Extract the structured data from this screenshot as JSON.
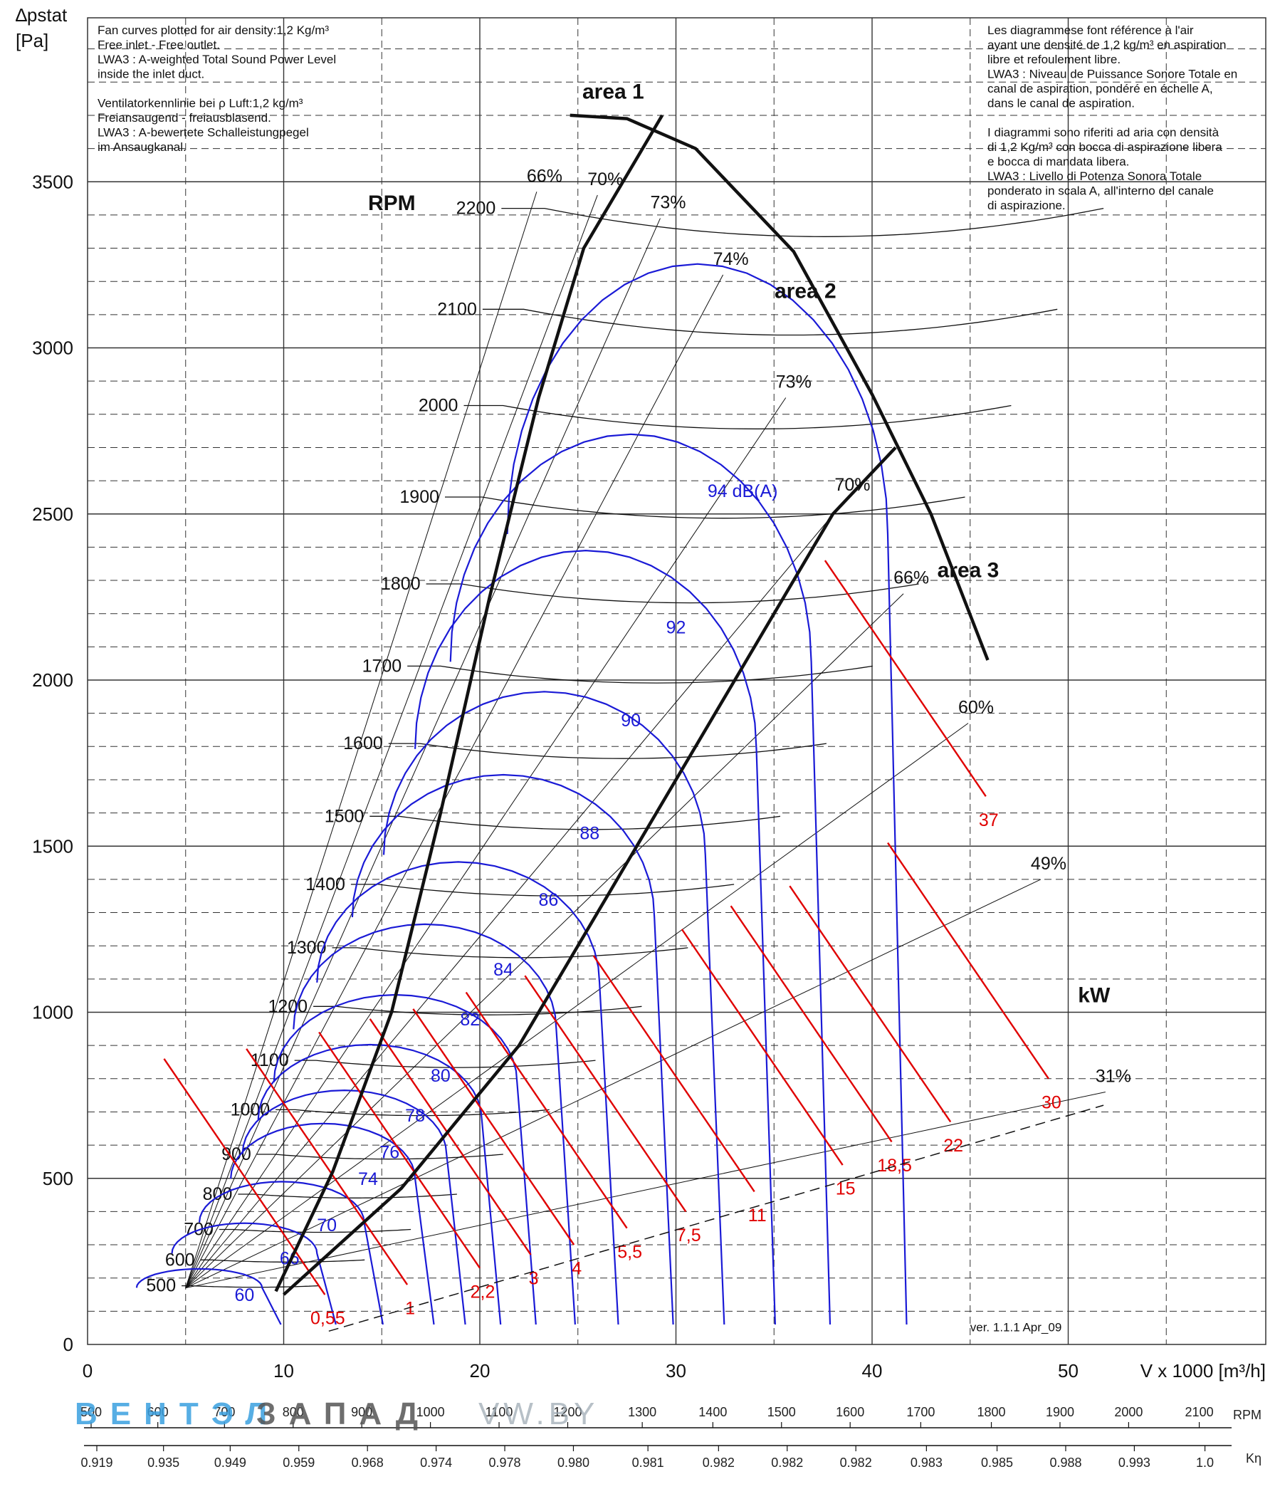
{
  "chart_data": {
    "type": "line",
    "y_axis": {
      "label_line1": "∆pstat",
      "label_line2": "[Pa]",
      "ylim": [
        0,
        4000
      ],
      "ticks": [
        0,
        500,
        1000,
        1500,
        2000,
        2500,
        3000,
        3500
      ]
    },
    "x_axis": {
      "label": "V x 1000 [m³/h]",
      "xlim": [
        0,
        60
      ],
      "ticks": [
        0,
        10,
        20,
        30,
        40,
        50
      ]
    },
    "notes_left": [
      "Fan curves plotted for air density:1,2 Kg/m³",
      "Free inlet - Free outlet.",
      "LWA3 : A-weighted Total Sound Power Level",
      "inside the inlet duct.",
      "",
      "Ventilatorkennlinie bei ρ Luft:1,2 kg/m³",
      "Freiansaugend - freiausblasend.",
      "LWA3 : A-bewertete Schalleistungpegel",
      "im Ansaugkanal."
    ],
    "notes_right": [
      "Les diagrammese font référence à l'air",
      "ayant une densité de 1,2 kg/m³ en aspiration",
      "libre et refoulement libre.",
      "LWA3 : Niveau de Puissance Sonore Totale en",
      "canal de aspiration, pondéré en échelle A,",
      "dans le canal de aspiration.",
      "",
      "I diagrammi sono riferiti ad aria con densità",
      "di 1,2 Kg/m³ con bocca di aspirazione libera",
      "e bocca di mandata libera.",
      "LWA3 : Livello di Potenza Sonora Totale",
      "ponderato in scala A, all'interno del canale",
      "di aspirazione."
    ],
    "rpm_heading": "RPM",
    "rpm_curves": [
      {
        "rpm": 500,
        "label": "500"
      },
      {
        "rpm": 600,
        "label": "600"
      },
      {
        "rpm": 700,
        "label": "700"
      },
      {
        "rpm": 800,
        "label": "800"
      },
      {
        "rpm": 900,
        "label": "900"
      },
      {
        "rpm": 1000,
        "label": "1000"
      },
      {
        "rpm": 1100,
        "label": "1100"
      },
      {
        "rpm": 1200,
        "label": "1200"
      },
      {
        "rpm": 1300,
        "label": "1300"
      },
      {
        "rpm": 1400,
        "label": "1400"
      },
      {
        "rpm": 1500,
        "label": "1500"
      },
      {
        "rpm": 1600,
        "label": "1600"
      },
      {
        "rpm": 1700,
        "label": "1700"
      },
      {
        "rpm": 1800,
        "label": "1800"
      },
      {
        "rpm": 1900,
        "label": "1900"
      },
      {
        "rpm": 2000,
        "label": "2000"
      },
      {
        "rpm": 2100,
        "label": "2100"
      },
      {
        "rpm": 2200,
        "label": "2200"
      }
    ],
    "efficiency_labels": [
      {
        "label": "66%",
        "x": 23.3,
        "y": 3500
      },
      {
        "label": "70%",
        "x": 26.4,
        "y": 3490
      },
      {
        "label": "73%",
        "x": 29.6,
        "y": 3420
      },
      {
        "label": "74%",
        "x": 32.8,
        "y": 3250
      },
      {
        "label": "73%",
        "x": 36.0,
        "y": 2880
      },
      {
        "label": "70%",
        "x": 39.0,
        "y": 2570
      },
      {
        "label": "66%",
        "x": 42.0,
        "y": 2290
      },
      {
        "label": "60%",
        "x": 45.3,
        "y": 1900
      },
      {
        "label": "49%",
        "x": 49.0,
        "y": 1430
      },
      {
        "label": "31%",
        "x": 52.3,
        "y": 790
      }
    ],
    "sound_labels": [
      {
        "label": "60",
        "x": 8.0,
        "y": 150
      },
      {
        "label": "66",
        "x": 10.3,
        "y": 260
      },
      {
        "label": "70",
        "x": 12.2,
        "y": 360
      },
      {
        "label": "74",
        "x": 14.3,
        "y": 500
      },
      {
        "label": "76",
        "x": 15.4,
        "y": 580
      },
      {
        "label": "78",
        "x": 16.7,
        "y": 690
      },
      {
        "label": "80",
        "x": 18.0,
        "y": 810
      },
      {
        "label": "82",
        "x": 19.5,
        "y": 980
      },
      {
        "label": "84",
        "x": 21.2,
        "y": 1130
      },
      {
        "label": "86",
        "x": 23.5,
        "y": 1340
      },
      {
        "label": "88",
        "x": 25.6,
        "y": 1540
      },
      {
        "label": "90",
        "x": 27.7,
        "y": 1880
      },
      {
        "label": "92",
        "x": 30.0,
        "y": 2160
      },
      {
        "label": "94 dB(A)",
        "x": 33.4,
        "y": 2570
      }
    ],
    "power_unit_label": "kW",
    "power_labels": [
      {
        "label": "0,55",
        "x": 12.1,
        "y": 80
      },
      {
        "label": "1",
        "x": 16.3,
        "y": 110
      },
      {
        "label": "2,2",
        "x": 20.0,
        "y": 160
      },
      {
        "label": "3",
        "x": 22.6,
        "y": 200
      },
      {
        "label": "4",
        "x": 24.8,
        "y": 230
      },
      {
        "label": "5,5",
        "x": 27.5,
        "y": 280
      },
      {
        "label": "7,5",
        "x": 30.5,
        "y": 330
      },
      {
        "label": "11",
        "x": 34.0,
        "y": 390
      },
      {
        "label": "15",
        "x": 38.5,
        "y": 470
      },
      {
        "label": "18,5",
        "x": 41.0,
        "y": 540
      },
      {
        "label": "22",
        "x": 44.0,
        "y": 600
      },
      {
        "label": "30",
        "x": 49.0,
        "y": 730
      },
      {
        "label": "37",
        "x": 45.8,
        "y": 1580
      }
    ],
    "areas": [
      {
        "label": "area 1",
        "x": 26.8,
        "y": 3750
      },
      {
        "label": "area 2",
        "x": 36.6,
        "y": 3150
      },
      {
        "label": "area 3",
        "x": 44.9,
        "y": 2310
      }
    ],
    "version_label": "ver. 1.1.1 Apr_09",
    "rpm_scale": {
      "label": "RPM",
      "ticks": [
        {
          "x": 0,
          "label": "500"
        },
        {
          "x": 3.4,
          "label": "600"
        },
        {
          "x": 6.8,
          "label": "700"
        },
        {
          "x": 10.3,
          "label": "800"
        },
        {
          "x": 13.8,
          "label": "900"
        },
        {
          "x": 17.3,
          "label": "1000"
        },
        {
          "x": 20.8,
          "label": "1100"
        },
        {
          "x": 24.3,
          "label": "1200"
        },
        {
          "x": 28.1,
          "label": "1300"
        },
        {
          "x": 31.7,
          "label": "1400"
        },
        {
          "x": 35.2,
          "label": "1500"
        },
        {
          "x": 38.7,
          "label": "1600"
        },
        {
          "x": 42.3,
          "label": "1700"
        },
        {
          "x": 45.9,
          "label": "1800"
        },
        {
          "x": 49.4,
          "label": "1900"
        },
        {
          "x": 52.9,
          "label": "2000"
        },
        {
          "x": 56.5,
          "label": "2100"
        }
      ]
    },
    "k_scale": {
      "label": "Kη",
      "ticks": [
        {
          "x": 0,
          "label": "0.919"
        },
        {
          "x": 3.4,
          "label": "0.935"
        },
        {
          "x": 6.8,
          "label": "0.949"
        },
        {
          "x": 10.3,
          "label": "0.959"
        },
        {
          "x": 13.8,
          "label": "0.968"
        },
        {
          "x": 17.3,
          "label": "0.974"
        },
        {
          "x": 20.8,
          "label": "0.978"
        },
        {
          "x": 24.3,
          "label": "0.980"
        },
        {
          "x": 28.1,
          "label": "0.981"
        },
        {
          "x": 31.7,
          "label": "0.982"
        },
        {
          "x": 35.2,
          "label": "0.982"
        },
        {
          "x": 38.7,
          "label": "0.982"
        },
        {
          "x": 42.3,
          "label": "0.983"
        },
        {
          "x": 45.9,
          "label": "0.985"
        },
        {
          "x": 49.4,
          "label": "0.988"
        },
        {
          "x": 52.9,
          "label": "0.993"
        },
        {
          "x": 56.5,
          "label": "1.0"
        }
      ]
    },
    "watermark": {
      "left": "ВЕНТЭЛ",
      "right": "ЗАПАД",
      "site": "VW.BY"
    },
    "colors": {
      "rpm": "#111111",
      "sound": "#1a1ad6",
      "power": "#e00000",
      "grid": "#333333",
      "watermark_blue": "#3aa0e0",
      "watermark_grey": "#555555"
    }
  }
}
